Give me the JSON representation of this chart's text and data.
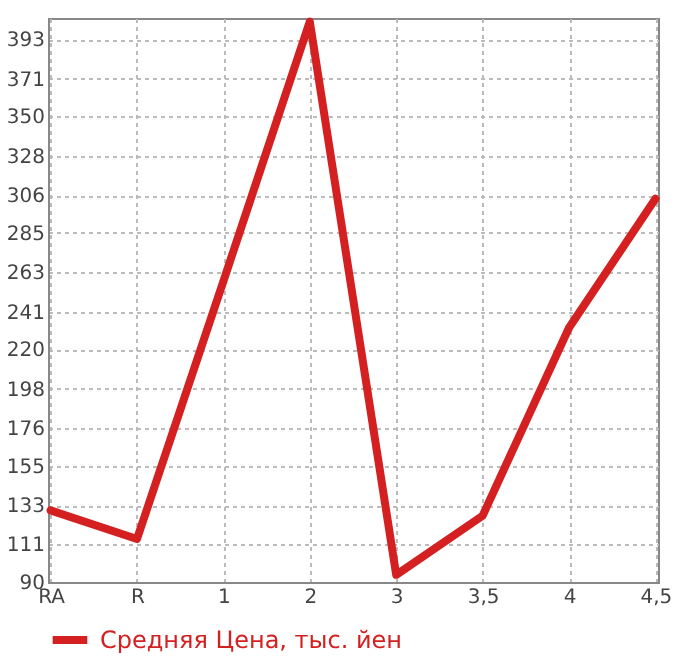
{
  "chart_data": {
    "type": "line",
    "categories": [
      "RA",
      "R",
      "1",
      "2",
      "3",
      "3,5",
      "4",
      "4,5"
    ],
    "series": [
      {
        "name": "Средняя Цена, тыс. йен",
        "color": "#d42020",
        "values": [
          130,
          114,
          258,
          403,
          94,
          127,
          232,
          304
        ]
      }
    ],
    "ylim": [
      90,
      405
    ],
    "yticks": [
      90,
      111,
      133,
      155,
      176,
      198,
      220,
      241,
      263,
      285,
      306,
      328,
      350,
      371,
      393
    ],
    "grid": true,
    "legend": "bottom",
    "marker": "none",
    "line_style": "solid"
  }
}
